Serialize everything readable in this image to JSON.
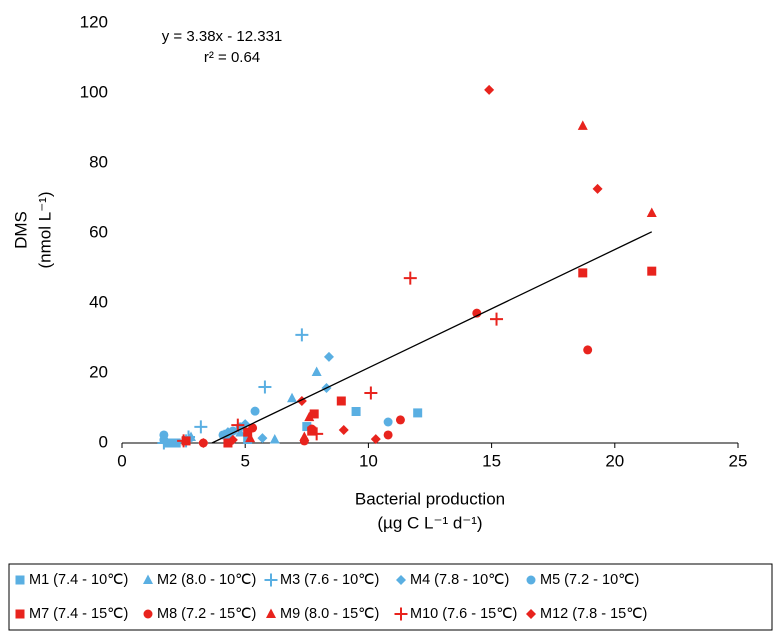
{
  "chart_data": {
    "type": "scatter",
    "annotations": [
      "y = 3.38x - 12.331",
      "r² = 0.64"
    ],
    "x_label": [
      "Bacterial production",
      "(µg C L⁻¹ d⁻¹)"
    ],
    "y_label": [
      "DMS",
      "(nmol L⁻¹)"
    ],
    "xlim": [
      0,
      25
    ],
    "xticks": [
      0,
      5,
      10,
      15,
      20,
      25
    ],
    "ylim": [
      0,
      120
    ],
    "yticks": [
      0,
      20,
      40,
      60,
      80,
      100,
      120
    ],
    "grid": false,
    "trendline": {
      "slope": 3.38,
      "intercept": -12.331,
      "xlim": [
        3.65,
        21.5
      ],
      "color": "#000000"
    },
    "series": [
      {
        "name": "M1 (7.4 - 10℃)",
        "color": "#5aafe2",
        "marker": "square",
        "x": [
          1.9,
          2.2,
          4.3,
          5.1,
          7.5,
          9.5,
          12.0
        ],
        "y": [
          0,
          0,
          2.5,
          1,
          4.7,
          9,
          8.6
        ]
      },
      {
        "name": "M2 (8.0 - 10℃)",
        "color": "#5aafe2",
        "marker": "triangle",
        "x": [
          2.8,
          4.8,
          6.2,
          6.9,
          7.9
        ],
        "y": [
          1.7,
          3,
          1,
          12.8,
          20.3
        ]
      },
      {
        "name": "M3 (7.6 - 10℃)",
        "color": "#5aafe2",
        "marker": "plus",
        "x": [
          1.7,
          2.6,
          2.7,
          3.2,
          5.8,
          7.3
        ],
        "y": [
          0,
          0.6,
          1.7,
          4.6,
          16,
          30.9
        ]
      },
      {
        "name": "M4 (7.8 - 10℃)",
        "color": "#5aafe2",
        "marker": "diamond",
        "x": [
          4.3,
          5.0,
          5.7,
          8.3,
          8.4
        ],
        "y": [
          3.1,
          5.4,
          1.4,
          15.7,
          24.6
        ]
      },
      {
        "name": "M5 (7.2 - 10℃)",
        "color": "#5aafe2",
        "marker": "circle",
        "x": [
          1.7,
          1.7,
          4.1,
          4.3,
          4.5,
          4.8,
          5.4,
          10.8
        ],
        "y": [
          2.3,
          0.9,
          2.3,
          1.4,
          3.4,
          4.6,
          9.1,
          6
        ]
      },
      {
        "name": "M7 (7.4 - 15℃)",
        "color": "#e8231d",
        "marker": "square",
        "x": [
          2.6,
          4.3,
          5.1,
          7.7,
          7.8,
          8.9,
          18.7,
          21.5
        ],
        "y": [
          0.6,
          0,
          3.1,
          3.4,
          8.3,
          12,
          48.6,
          49.1
        ]
      },
      {
        "name": "M8 (7.2 - 15℃)",
        "color": "#e8231d",
        "marker": "circle",
        "x": [
          3.3,
          5.3,
          7.4,
          7.7,
          10.8,
          11.3,
          14.4,
          18.9
        ],
        "y": [
          0,
          4.3,
          0.6,
          4,
          2.3,
          6.6,
          37.1,
          26.6
        ]
      },
      {
        "name": "M9 (8.0 - 15℃)",
        "color": "#e8231d",
        "marker": "triangle",
        "x": [
          5.2,
          7.4,
          7.6,
          18.7,
          21.5
        ],
        "y": [
          1.4,
          1.7,
          7.4,
          90.6,
          65.7
        ]
      },
      {
        "name": "M10 (7.6 - 15℃)",
        "color": "#e8231d",
        "marker": "plus",
        "x": [
          2.5,
          4.7,
          7.9,
          10.1,
          11.7,
          15.2
        ],
        "y": [
          0.6,
          5.1,
          2.6,
          14.3,
          47.1,
          35.4
        ]
      },
      {
        "name": "M12 (7.8 - 15℃)",
        "color": "#e8231d",
        "marker": "diamond",
        "x": [
          3.3,
          4.5,
          7.3,
          9.0,
          10.3,
          14.9,
          19.3
        ],
        "y": [
          0,
          0.9,
          12,
          3.7,
          1.1,
          100.9,
          72.6
        ]
      }
    ]
  }
}
